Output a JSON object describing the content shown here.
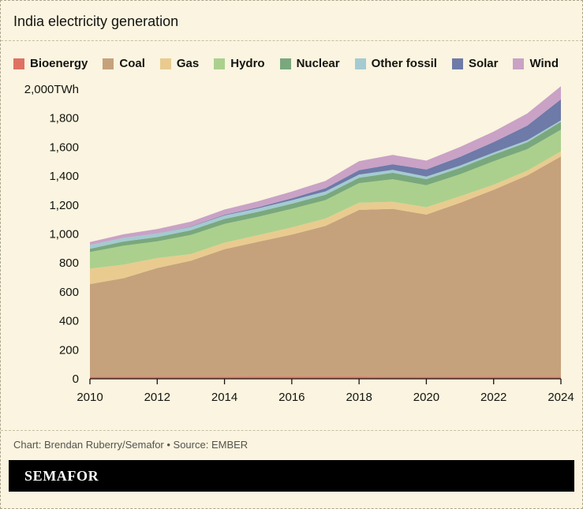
{
  "title": "India electricity generation",
  "legend": [
    {
      "label": "Bioenergy",
      "color": "#df7163"
    },
    {
      "label": "Coal",
      "color": "#c5a27c"
    },
    {
      "label": "Gas",
      "color": "#e9cb8f"
    },
    {
      "label": "Hydro",
      "color": "#abd08d"
    },
    {
      "label": "Nuclear",
      "color": "#7aa87d"
    },
    {
      "label": "Other fossil",
      "color": "#a3cbd1"
    },
    {
      "label": "Solar",
      "color": "#6e7aa8"
    },
    {
      "label": "Wind",
      "color": "#c9a2c6"
    }
  ],
  "chart_data": {
    "type": "area",
    "stacked": true,
    "title": "India electricity generation",
    "unit": "TWh",
    "x": [
      2010,
      2011,
      2012,
      2013,
      2014,
      2015,
      2016,
      2017,
      2018,
      2019,
      2020,
      2021,
      2022,
      2023,
      2024
    ],
    "series": [
      {
        "name": "Bioenergy",
        "color": "#df7163",
        "values": [
          14,
          15,
          15,
          15,
          15,
          16,
          16,
          16,
          16,
          14,
          14,
          15,
          15,
          15,
          15
        ]
      },
      {
        "name": "Coal",
        "color": "#c5a27c",
        "values": [
          640,
          680,
          750,
          800,
          880,
          930,
          980,
          1040,
          1150,
          1160,
          1120,
          1200,
          1290,
          1390,
          1520
        ]
      },
      {
        "name": "Gas",
        "color": "#e9cb8f",
        "values": [
          107,
          93,
          69,
          46,
          45,
          46,
          49,
          50,
          50,
          48,
          51,
          45,
          35,
          32,
          35
        ]
      },
      {
        "name": "Hydro",
        "color": "#abd08d",
        "values": [
          114,
          131,
          115,
          132,
          130,
          126,
          129,
          128,
          135,
          156,
          151,
          152,
          162,
          149,
          150
        ]
      },
      {
        "name": "Nuclear",
        "color": "#7aa87d",
        "values": [
          23,
          29,
          30,
          33,
          34,
          35,
          35,
          37,
          37,
          45,
          43,
          44,
          46,
          48,
          55
        ]
      },
      {
        "name": "Other fossil",
        "color": "#a3cbd1",
        "values": [
          26,
          25,
          24,
          23,
          24,
          24,
          24,
          23,
          22,
          20,
          17,
          16,
          14,
          13,
          10
        ]
      },
      {
        "name": "Solar",
        "color": "#6e7aa8",
        "values": [
          0,
          0,
          1,
          3,
          5,
          8,
          14,
          22,
          31,
          39,
          50,
          61,
          73,
          102,
          145
        ]
      },
      {
        "name": "Wind",
        "color": "#c9a2c6",
        "values": [
          20,
          25,
          30,
          33,
          36,
          41,
          46,
          51,
          62,
          64,
          61,
          68,
          72,
          83,
          90
        ]
      }
    ],
    "ylim": [
      0,
      2000
    ],
    "y_ticks": [
      0,
      200,
      400,
      600,
      800,
      1000,
      1200,
      1400,
      1600,
      1800,
      2000
    ],
    "y_tick_labels": [
      "0",
      "200",
      "400",
      "600",
      "800",
      "1,000",
      "1,200",
      "1,400",
      "1,600",
      "1,800",
      "2,000TWh"
    ],
    "x_ticks": [
      2010,
      2012,
      2014,
      2016,
      2018,
      2020,
      2022,
      2024
    ],
    "x_tick_labels": [
      "2010",
      "2012",
      "2014",
      "2016",
      "2018",
      "2020",
      "2022",
      "2024"
    ],
    "grid": false,
    "legend_position": "top"
  },
  "footer": {
    "credit": "Chart: Brendan Ruberry/Semafor • Source: EMBER"
  },
  "brand": {
    "logo_text": "SEMAFOR",
    "bar_color": "#000000",
    "text_color": "#ffffff"
  },
  "colors": {
    "background": "#faf4e0",
    "border_dashed": "#aaa48c",
    "separator_dashed": "#c6bfa2",
    "axis": "#14140f",
    "footer_text": "#55544a"
  }
}
